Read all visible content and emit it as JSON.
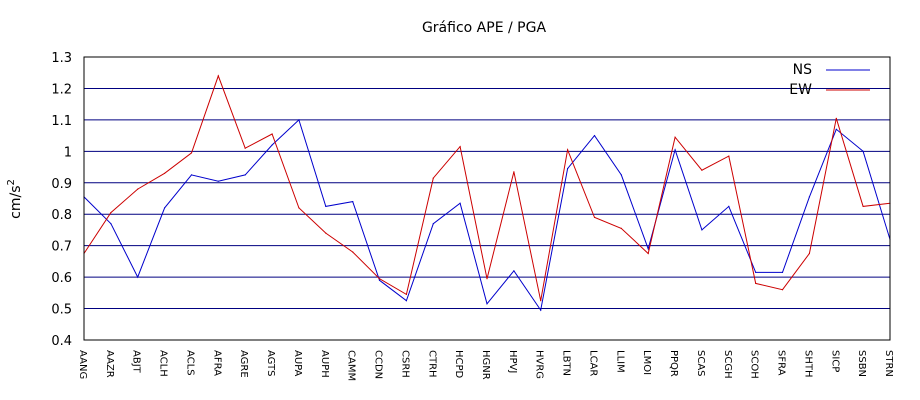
{
  "chart_data": {
    "type": "line",
    "title": "Gráfico  APE / PGA",
    "ylabel": "cm/s",
    "ylabel_superscript": "2",
    "xlabel": "",
    "ylim": [
      0.4,
      1.3
    ],
    "yticks": [
      "0.4",
      "0.5",
      "0.6",
      "0.7",
      "0.8",
      "0.9",
      "1",
      "1.1",
      "1.2",
      "1.3"
    ],
    "grid": "horizontal",
    "legend_position": "top-right",
    "categories": [
      "AANG",
      "AAZR",
      "ABJT",
      "ACLH",
      "ACLS",
      "AFRA",
      "AGRE",
      "AGTS",
      "AUPA",
      "AUPH",
      "CAMM",
      "CCDN",
      "CSRH",
      "CTRH",
      "HCPD",
      "HGNR",
      "HPVJ",
      "HVRG",
      "LBTN",
      "LCAR",
      "LLIM",
      "LMOI",
      "PPQR",
      "SCAS",
      "SCGH",
      "SCOH",
      "SFRA",
      "SHTH",
      "SICP",
      "SSBN",
      "STRN"
    ],
    "series": [
      {
        "name": "NS",
        "color": "#0000cc",
        "values": [
          0.855,
          0.77,
          0.6,
          0.82,
          0.925,
          0.905,
          0.925,
          1.02,
          1.1,
          0.825,
          0.84,
          0.59,
          0.525,
          0.77,
          0.835,
          0.515,
          0.62,
          0.495,
          0.945,
          1.05,
          0.925,
          0.69,
          1.005,
          0.75,
          0.825,
          0.615,
          0.615,
          0.855,
          1.07,
          1.0,
          0.72
        ]
      },
      {
        "name": "EW",
        "color": "#cc0000",
        "values": [
          0.675,
          0.805,
          0.88,
          0.93,
          0.995,
          1.24,
          1.01,
          1.055,
          0.82,
          0.74,
          0.68,
          0.595,
          0.545,
          0.915,
          1.015,
          0.595,
          0.935,
          0.525,
          1.005,
          0.79,
          0.755,
          0.675,
          1.045,
          0.94,
          0.985,
          0.58,
          0.56,
          0.675,
          1.105,
          0.825,
          0.835
        ]
      }
    ]
  }
}
